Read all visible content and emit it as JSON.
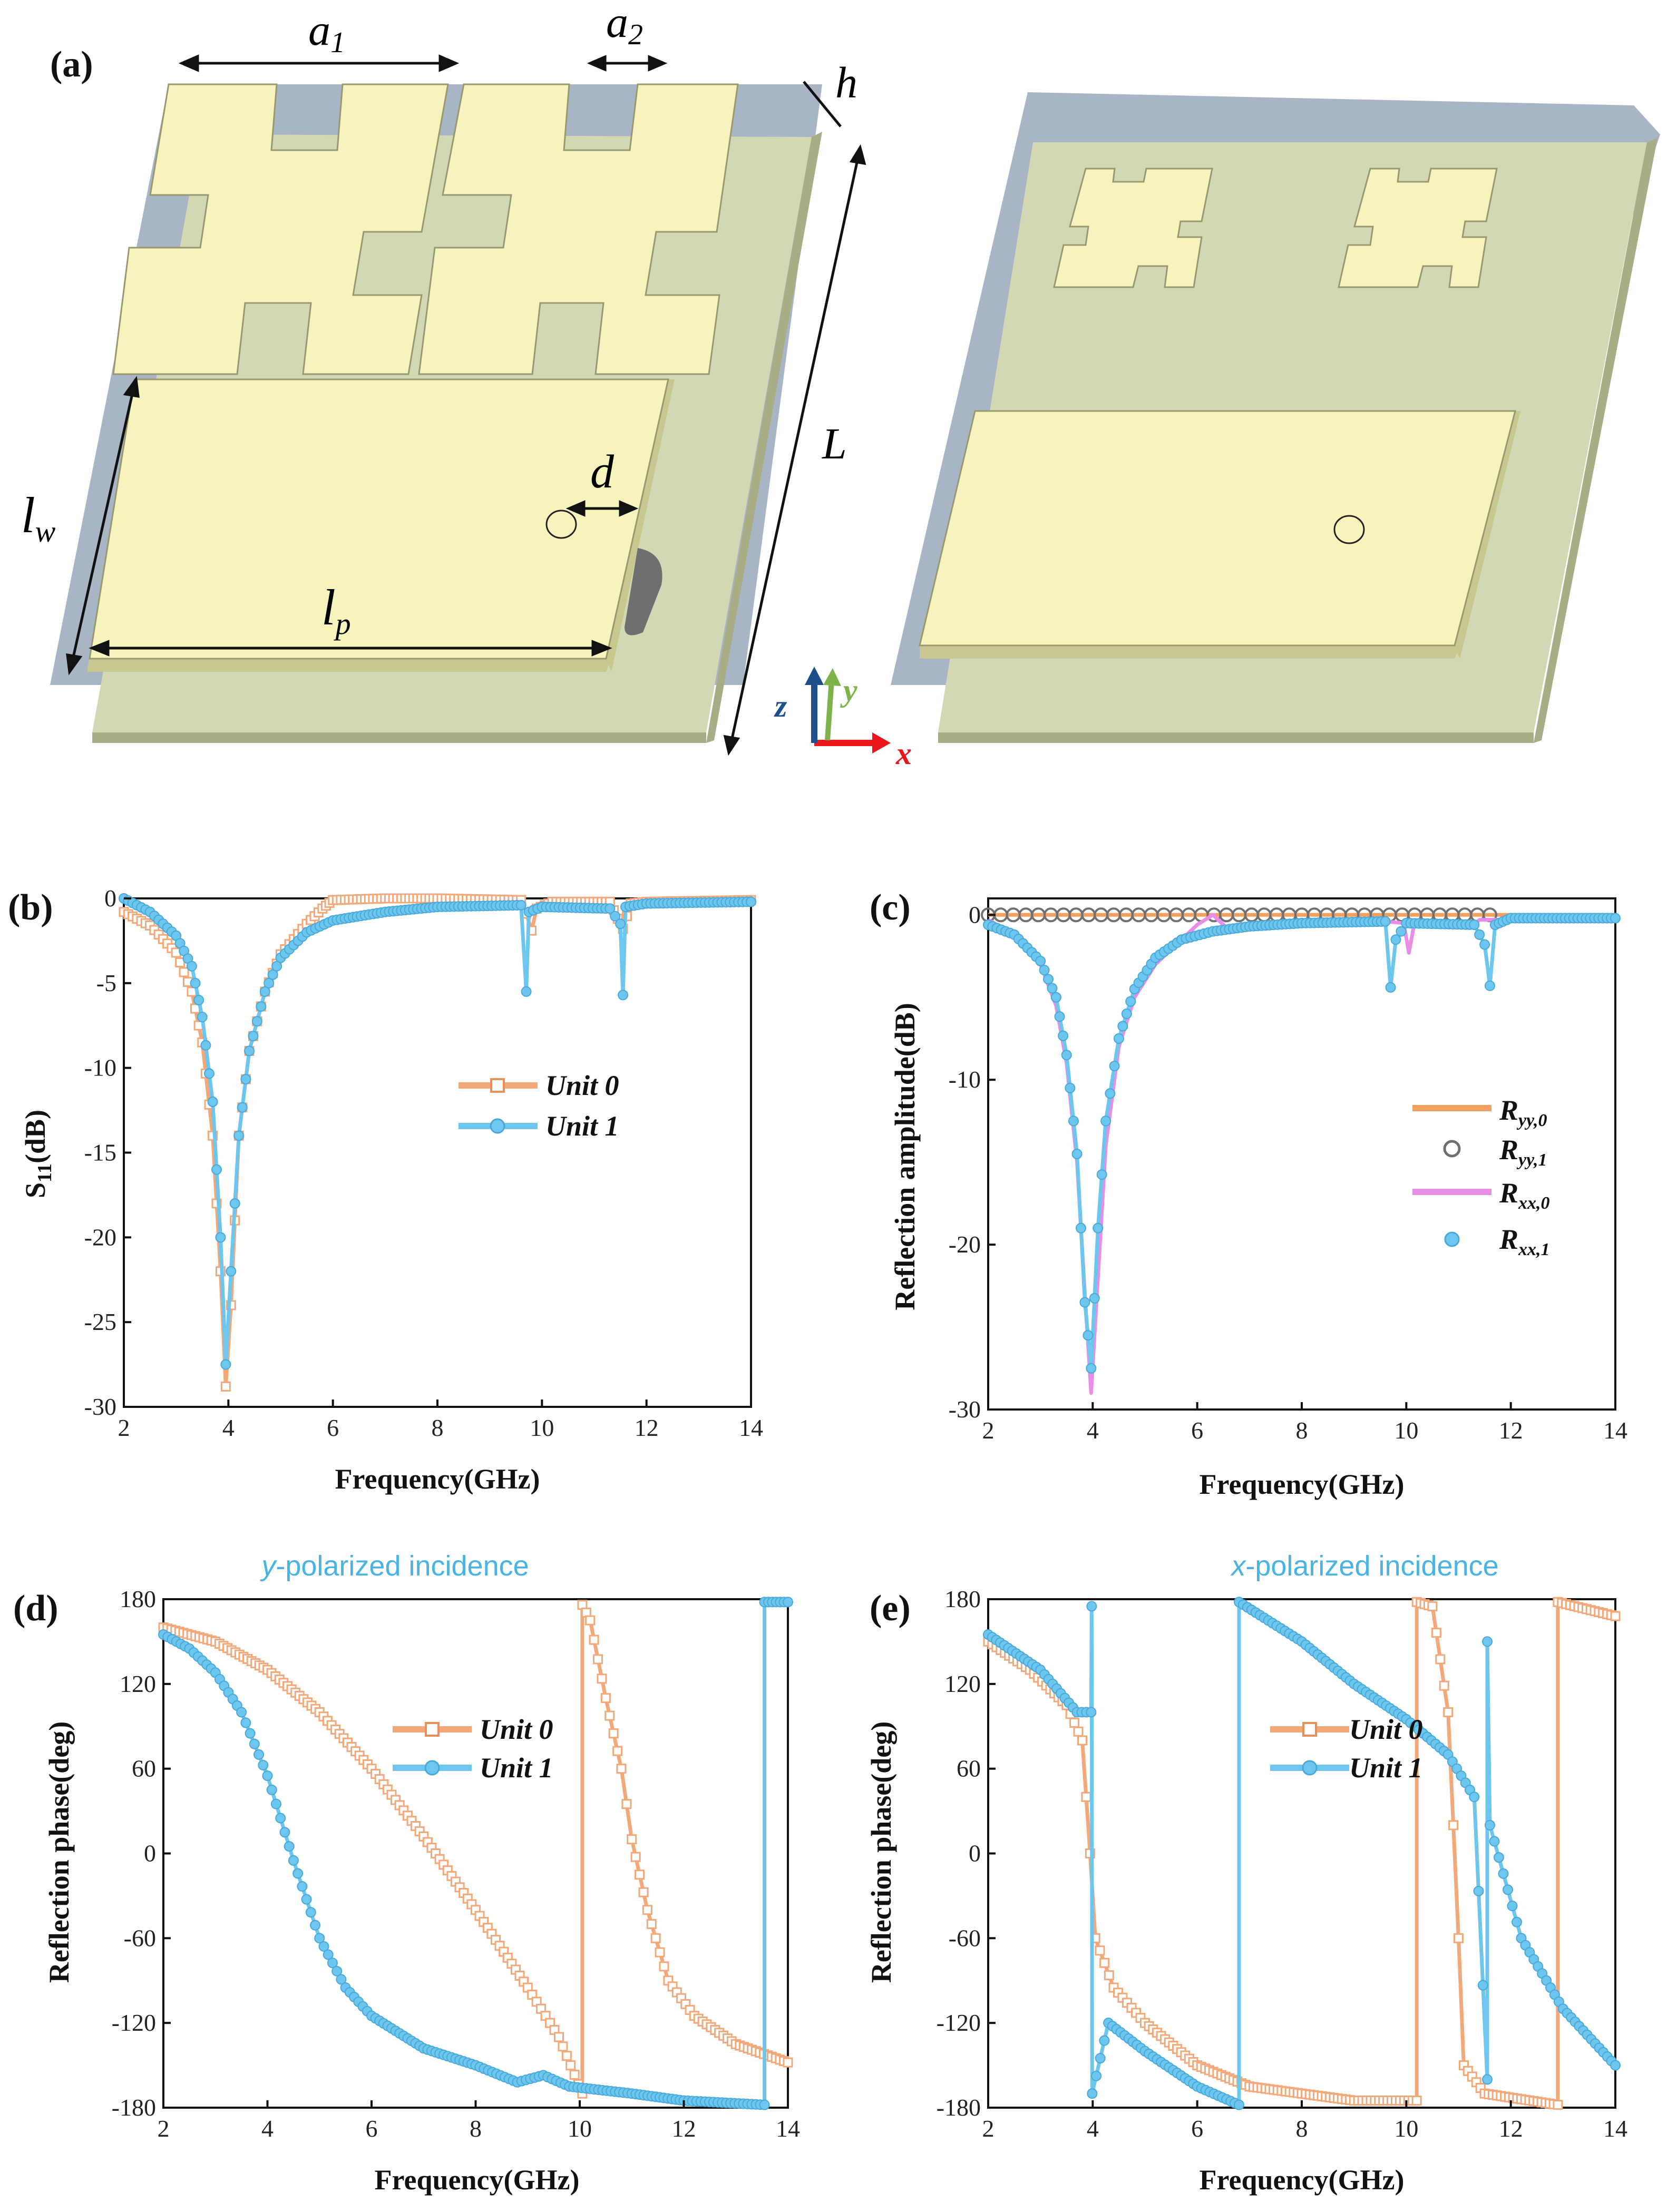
{
  "panel_a": {
    "label": "(a)",
    "dims": {
      "a1": "a",
      "a1s": "1",
      "a2": "a",
      "a2s": "2",
      "h": "h",
      "L": "L",
      "lw": "l",
      "lws": "w",
      "lp": "l",
      "lps": "p",
      "d": "d"
    },
    "axes": {
      "x": "x",
      "y": "y",
      "z": "z"
    },
    "colors": {
      "metal": "#f6f3bd",
      "metal_side": "#c9c790",
      "substrate": "#d2d8b3",
      "substrate_side": "#a8ad86",
      "ground": "#a8b5c4",
      "hole": "#6f6f70"
    }
  },
  "chart_data": [
    {
      "id": "b",
      "label": "(b)",
      "type": "line",
      "title": "",
      "xlabel": "Frequency(GHz)",
      "ylabel": "S11(dB)",
      "ylabel_main": "S",
      "ylabel_sub": "11",
      "ylabel_rest": "(dB)",
      "xlim": [
        2,
        14
      ],
      "ylim": [
        -30,
        0
      ],
      "xticks": [
        "2",
        "4",
        "6",
        "8",
        "10",
        "12",
        "14"
      ],
      "yticks": [
        "0",
        "-5",
        "-10",
        "-15",
        "-20",
        "-25",
        "-30"
      ],
      "legend": [
        "Unit 0",
        "Unit 1"
      ],
      "series": [
        {
          "name": "Unit 0",
          "color": "#f2a878",
          "marker": "square",
          "points": [
            [
              2,
              -0.8
            ],
            [
              2.5,
              -1.6
            ],
            [
              3,
              -3.2
            ],
            [
              3.3,
              -5.5
            ],
            [
              3.5,
              -8.5
            ],
            [
              3.7,
              -14
            ],
            [
              3.85,
              -22
            ],
            [
              3.95,
              -28.8
            ],
            [
              4.05,
              -24
            ],
            [
              4.2,
              -14
            ],
            [
              4.4,
              -9
            ],
            [
              4.7,
              -5.5
            ],
            [
              5,
              -3.3
            ],
            [
              5.5,
              -1.5
            ],
            [
              5.8,
              -0.6
            ],
            [
              6,
              -0.1
            ],
            [
              7,
              0
            ],
            [
              8,
              0
            ],
            [
              9.6,
              -0.1
            ],
            [
              9.7,
              -0.9
            ],
            [
              9.8,
              -1.9
            ],
            [
              9.9,
              -0.6
            ],
            [
              10.2,
              -0.2
            ],
            [
              11.3,
              -0.2
            ],
            [
              11.45,
              -1.2
            ],
            [
              11.55,
              -1.8
            ],
            [
              11.7,
              -0.3
            ],
            [
              12,
              -0.2
            ],
            [
              14,
              -0.1
            ]
          ]
        },
        {
          "name": "Unit 1",
          "color": "#6cc6ee",
          "marker": "circle",
          "points": [
            [
              2,
              0
            ],
            [
              2.5,
              -0.8
            ],
            [
              3,
              -2.2
            ],
            [
              3.3,
              -4
            ],
            [
              3.5,
              -7
            ],
            [
              3.7,
              -12
            ],
            [
              3.85,
              -20
            ],
            [
              3.95,
              -27.5
            ],
            [
              4.05,
              -22
            ],
            [
              4.2,
              -14
            ],
            [
              4.4,
              -9
            ],
            [
              4.7,
              -5.5
            ],
            [
              5,
              -3.5
            ],
            [
              5.5,
              -2
            ],
            [
              6,
              -1.3
            ],
            [
              7,
              -0.8
            ],
            [
              8,
              -0.5
            ],
            [
              9.6,
              -0.4
            ],
            [
              9.7,
              -5.5
            ],
            [
              9.75,
              -0.8
            ],
            [
              10,
              -0.5
            ],
            [
              11.3,
              -0.6
            ],
            [
              11.5,
              -1.5
            ],
            [
              11.55,
              -5.7
            ],
            [
              11.6,
              -0.5
            ],
            [
              12,
              -0.3
            ],
            [
              14,
              -0.2
            ]
          ]
        }
      ]
    },
    {
      "id": "c",
      "label": "(c)",
      "type": "line",
      "title": "",
      "xlabel": "Frequency(GHz)",
      "ylabel": "Reflection amplitude(dB)",
      "xlim": [
        2,
        14
      ],
      "ylim": [
        -30,
        1
      ],
      "xticks": [
        "2",
        "4",
        "6",
        "8",
        "10",
        "12",
        "14"
      ],
      "yticks": [
        "0",
        "-10",
        "-20",
        "-30"
      ],
      "legend": [
        "Ryy,0",
        "Ryy,1",
        "Rxx,0",
        "Rxx,1"
      ],
      "legend_parts": [
        [
          "R",
          "yy,0"
        ],
        [
          "R",
          "yy,1"
        ],
        [
          "R",
          "xx,0"
        ],
        [
          "R",
          "xx,1"
        ]
      ],
      "series": [
        {
          "name": "Ryy,0",
          "color": "#f2a060",
          "marker": "none",
          "points": [
            [
              2,
              0
            ],
            [
              14,
              0
            ]
          ]
        },
        {
          "name": "Ryy,1",
          "color": "#707070",
          "marker": "open-circle",
          "points": [
            [
              2,
              0
            ],
            [
              11.6,
              0
            ]
          ]
        },
        {
          "name": "Rxx,0",
          "color": "#e98ee6",
          "marker": "none",
          "points": [
            [
              2,
              -0.3
            ],
            [
              2.5,
              -1.2
            ],
            [
              3,
              -3
            ],
            [
              3.3,
              -5.5
            ],
            [
              3.5,
              -9
            ],
            [
              3.7,
              -15
            ],
            [
              3.85,
              -23
            ],
            [
              3.97,
              -29
            ],
            [
              4.1,
              -22
            ],
            [
              4.25,
              -14
            ],
            [
              4.5,
              -8
            ],
            [
              4.8,
              -5
            ],
            [
              5.2,
              -3
            ],
            [
              5.7,
              -1.5
            ],
            [
              6,
              -0.6
            ],
            [
              6.3,
              0
            ],
            [
              6.6,
              -0.9
            ],
            [
              7,
              -0.6
            ],
            [
              8,
              -0.4
            ],
            [
              9.6,
              -0.4
            ],
            [
              9.95,
              -0.5
            ],
            [
              10.05,
              -2.3
            ],
            [
              10.15,
              -0.6
            ],
            [
              11,
              -0.4
            ],
            [
              11.2,
              -0.8
            ],
            [
              11.4,
              -0.3
            ],
            [
              14,
              -0.2
            ]
          ]
        },
        {
          "name": "Rxx,1",
          "color": "#6cc6ee",
          "marker": "circle",
          "points": [
            [
              2,
              -0.6
            ],
            [
              2.5,
              -1.2
            ],
            [
              3,
              -2.8
            ],
            [
              3.3,
              -5
            ],
            [
              3.5,
              -8.5
            ],
            [
              3.7,
              -14.5
            ],
            [
              3.85,
              -23.5
            ],
            [
              3.97,
              -27.5
            ],
            [
              4.1,
              -19
            ],
            [
              4.25,
              -12.5
            ],
            [
              4.5,
              -7.5
            ],
            [
              4.8,
              -4.5
            ],
            [
              5.2,
              -2.6
            ],
            [
              5.7,
              -1.5
            ],
            [
              6.3,
              -1
            ],
            [
              7,
              -0.7
            ],
            [
              8,
              -0.5
            ],
            [
              9.6,
              -0.4
            ],
            [
              9.7,
              -4.4
            ],
            [
              9.8,
              -1.5
            ],
            [
              10,
              -0.5
            ],
            [
              11.3,
              -0.6
            ],
            [
              11.5,
              -1.8
            ],
            [
              11.6,
              -4.3
            ],
            [
              11.7,
              -0.6
            ],
            [
              12,
              -0.2
            ],
            [
              14,
              -0.2
            ]
          ]
        }
      ]
    },
    {
      "id": "d",
      "label": "(d)",
      "type": "line",
      "title": "y-polarized incidence",
      "title_em": "y",
      "title_rest": "-polarized incidence",
      "xlabel": "Frequency(GHz)",
      "ylabel": "Reflection phase(deg)",
      "xlim": [
        2,
        14
      ],
      "ylim": [
        -180,
        180
      ],
      "xticks": [
        "2",
        "4",
        "6",
        "8",
        "10",
        "12",
        "14"
      ],
      "yticks": [
        "180",
        "120",
        "60",
        "0",
        "-60",
        "-120",
        "-180"
      ],
      "legend": [
        "Unit 0",
        "Unit 1"
      ],
      "series": [
        {
          "name": "Unit 0",
          "color": "#f2a878",
          "marker": "square",
          "points": [
            [
              2,
              160
            ],
            [
              3,
              150
            ],
            [
              4,
              130
            ],
            [
              5,
              100
            ],
            [
              6,
              60
            ],
            [
              7,
              12
            ],
            [
              8,
              -40
            ],
            [
              9,
              -95
            ],
            [
              9.6,
              -130
            ],
            [
              10.05,
              -170
            ],
            [
              10.05,
              176
            ],
            [
              10.2,
              165
            ],
            [
              10.5,
              110
            ],
            [
              10.8,
              60
            ],
            [
              11,
              10
            ],
            [
              11.3,
              -40
            ],
            [
              11.7,
              -90
            ],
            [
              12.2,
              -115
            ],
            [
              13,
              -135
            ],
            [
              14,
              -148
            ]
          ]
        },
        {
          "name": "Unit 1",
          "color": "#6cc6ee",
          "marker": "circle",
          "points": [
            [
              2,
              155
            ],
            [
              2.5,
              145
            ],
            [
              3,
              128
            ],
            [
              3.5,
              100
            ],
            [
              4,
              55
            ],
            [
              4.5,
              -5
            ],
            [
              5,
              -60
            ],
            [
              5.5,
              -95
            ],
            [
              6,
              -115
            ],
            [
              7,
              -138
            ],
            [
              8,
              -150
            ],
            [
              8.8,
              -162
            ],
            [
              9.3,
              -157
            ],
            [
              9.8,
              -165
            ],
            [
              11,
              -170
            ],
            [
              12,
              -175
            ],
            [
              13.55,
              -178
            ],
            [
              13.55,
              178
            ],
            [
              14,
              178
            ]
          ]
        }
      ]
    },
    {
      "id": "e",
      "label": "(e)",
      "type": "line",
      "title": "x-polarized incidence",
      "title_em": "x",
      "title_rest": "-polarized incidence",
      "xlabel": "Frequency(GHz)",
      "ylabel": "Reflection phase(deg)",
      "xlim": [
        2,
        14
      ],
      "ylim": [
        -180,
        180
      ],
      "xticks": [
        "2",
        "4",
        "6",
        "8",
        "10",
        "12",
        "14"
      ],
      "yticks": [
        "180",
        "120",
        "60",
        "0",
        "-60",
        "-120",
        "-180"
      ],
      "legend": [
        "Unit 0",
        "Unit 1"
      ],
      "series": [
        {
          "name": "Unit 0",
          "color": "#f2a878",
          "marker": "square",
          "points": [
            [
              2,
              150
            ],
            [
              2.8,
              130
            ],
            [
              3.5,
              105
            ],
            [
              3.8,
              80
            ],
            [
              3.95,
              0
            ],
            [
              4.05,
              -60
            ],
            [
              4.4,
              -95
            ],
            [
              5,
              -120
            ],
            [
              6,
              -150
            ],
            [
              7,
              -165
            ],
            [
              8,
              -170
            ],
            [
              9,
              -175
            ],
            [
              10.2,
              -175
            ],
            [
              10.2,
              178
            ],
            [
              10.5,
              175
            ],
            [
              10.8,
              100
            ],
            [
              11,
              -60
            ],
            [
              11.1,
              -150
            ],
            [
              11.5,
              -170
            ],
            [
              12.9,
              -178
            ],
            [
              12.9,
              178
            ],
            [
              14,
              168
            ]
          ]
        },
        {
          "name": "Unit 1",
          "color": "#6cc6ee",
          "marker": "circle",
          "points": [
            [
              2,
              155
            ],
            [
              3,
              130
            ],
            [
              3.7,
              100
            ],
            [
              3.97,
              100
            ],
            [
              3.98,
              175
            ],
            [
              3.99,
              -170
            ],
            [
              4.3,
              -120
            ],
            [
              5,
              -140
            ],
            [
              6,
              -165
            ],
            [
              6.8,
              -178
            ],
            [
              6.8,
              178
            ],
            [
              8,
              150
            ],
            [
              9,
              120
            ],
            [
              10,
              95
            ],
            [
              10.8,
              70
            ],
            [
              11.3,
              40
            ],
            [
              11.55,
              -160
            ],
            [
              11.55,
              150
            ],
            [
              11.6,
              20
            ],
            [
              12.2,
              -60
            ],
            [
              13,
              -110
            ],
            [
              14,
              -150
            ]
          ]
        }
      ]
    }
  ]
}
